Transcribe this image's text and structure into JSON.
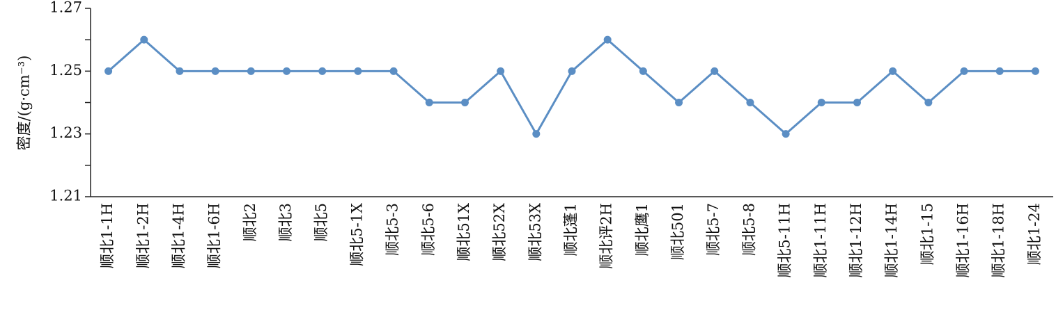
{
  "chart_data": {
    "type": "line",
    "y_label": "密度/(g·cm⁻³)",
    "categories": [
      "顺北1-1H",
      "顺北1-2H",
      "顺北1-4H",
      "顺北1-6H",
      "顺北2",
      "顺北3",
      "顺北5",
      "顺北5-1X",
      "顺北5-3",
      "顺北5-6",
      "顺北51X",
      "顺北52X",
      "顺北53X",
      "顺北蓬1",
      "顺北评2H",
      "顺北鹰1",
      "顺北501",
      "顺北5-7",
      "顺北5-8",
      "顺北5-11H",
      "顺北1-11H",
      "顺北1-12H",
      "顺北1-14H",
      "顺北1-15",
      "顺北1-16H",
      "顺北1-18H",
      "顺北1-24"
    ],
    "values": [
      1.25,
      1.26,
      1.25,
      1.25,
      1.25,
      1.25,
      1.25,
      1.25,
      1.25,
      1.24,
      1.24,
      1.25,
      1.23,
      1.25,
      1.26,
      1.25,
      1.24,
      1.25,
      1.24,
      1.23,
      1.24,
      1.24,
      1.25,
      1.24,
      1.25,
      1.25,
      1.25
    ],
    "color": "#5b8ec4",
    "ylim": [
      1.21,
      1.27
    ],
    "yticks": [
      1.21,
      1.23,
      1.25,
      1.27
    ],
    "yminorticks": [
      1.22,
      1.24,
      1.26
    ],
    "grid": false
  }
}
